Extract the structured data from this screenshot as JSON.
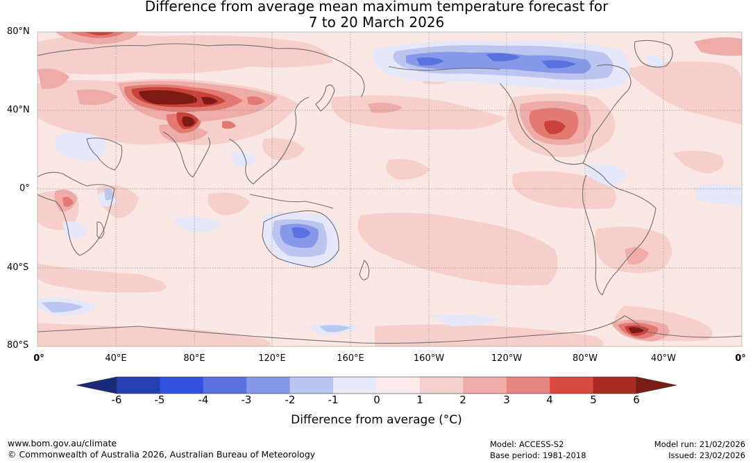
{
  "title_line1": "Difference from average mean maximum temperature forecast for",
  "title_line2": "7 to 20 March 2026",
  "lat_labels": [
    "80°N",
    "40°N",
    "0°",
    "40°S",
    "80°S"
  ],
  "lon_labels": [
    "0°",
    "40°E",
    "80°E",
    "120°E",
    "160°E",
    "160°W",
    "120°W",
    "80°W",
    "40°W",
    "0°"
  ],
  "colorbar": {
    "ticks": [
      "-6",
      "-5",
      "-4",
      "-3",
      "-2",
      "-1",
      "0",
      "1",
      "2",
      "3",
      "4",
      "5",
      "6"
    ],
    "title": "Difference from average (°C)",
    "under_color": "#1a2a7a",
    "over_color": "#7a1c16",
    "colors": [
      "#2440b0",
      "#3050e0",
      "#5a72e0",
      "#8898e8",
      "#bcc4f0",
      "#e6eafa",
      "#fdeceb",
      "#f5d0ce",
      "#eeaba7",
      "#e68680",
      "#d84a40",
      "#ad2a22"
    ]
  },
  "colors": {
    "base_ocean": "#fbe7e4",
    "warm_light": "#f6cfcb",
    "warm_mid": "#eeaba7",
    "warm_strong": "#e27a72",
    "warm_very": "#c8413a",
    "warm_extreme": "#7e1a14",
    "cool_light": "#e4e8fa",
    "cool_mid": "#bcc4f0",
    "cool_strong": "#8898e8",
    "cool_very": "#5a72e0",
    "coast": "#6e6e6e",
    "grid": "#8a8a8a"
  },
  "footer": {
    "website": "www.bom.gov.au/climate",
    "copyright": "© Commonwealth of Australia 2026, Australian Bureau of Meteorology",
    "model": "Model: ACCESS-S2",
    "base_period": "Base period: 1981-2018",
    "model_run": "Model run: 21/02/2026",
    "issued": "Issued: 23/02/2026"
  }
}
